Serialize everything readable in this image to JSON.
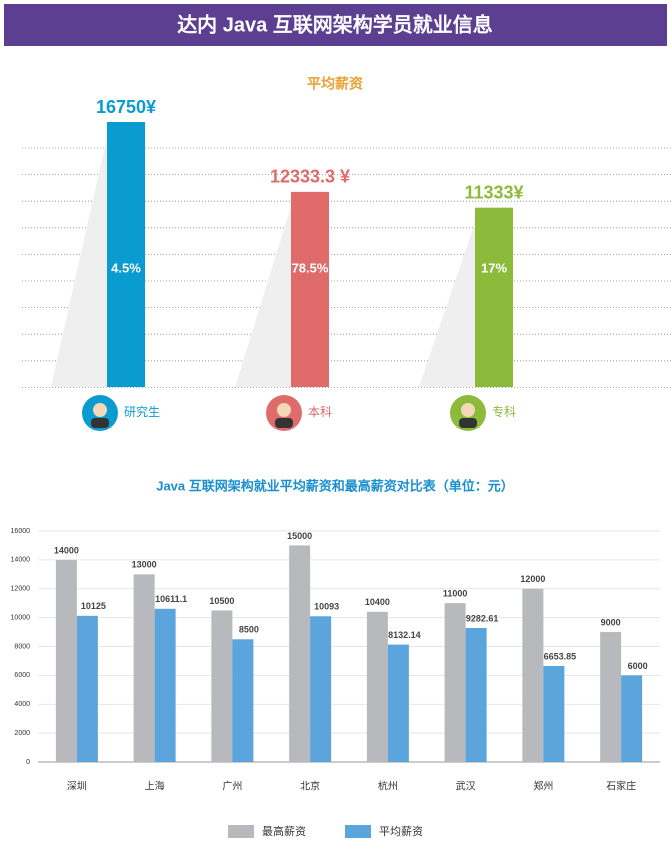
{
  "header": {
    "title": "达内 Java 互联网架构学员就业信息"
  },
  "chart_data": [
    {
      "type": "bar",
      "title": "平均薪资",
      "categories": [
        "研究生",
        "本科",
        "专科"
      ],
      "values": [
        16750,
        12333.3,
        11333
      ],
      "value_labels": [
        "16750¥",
        "12333.3 ¥",
        "11333¥"
      ],
      "colors": [
        "#0a9bd0",
        "#e06b6b",
        "#8cbb3c"
      ],
      "shares": {
        "values": [
          4.5,
          78.5,
          17
        ],
        "value_labels": [
          "4.5%",
          "78.5%",
          "17%"
        ]
      }
    },
    {
      "type": "grouped-bar",
      "title": "Java 互联网架构就业平均薪资和最高薪资对比表（单位：元）",
      "categories": [
        "深圳",
        "上海",
        "广州",
        "北京",
        "杭州",
        "武汉",
        "郑州",
        "石家庄"
      ],
      "series": [
        {
          "name": "最高薪资",
          "color": "#b8b9bc",
          "values": [
            14000,
            13000,
            10500,
            15000,
            10400,
            11000,
            12000,
            9000
          ]
        },
        {
          "name": "平均薪资",
          "color": "#5ba5dc",
          "values": [
            10125,
            10611.1,
            8500,
            10093,
            8132.14,
            9282.61,
            6653.85,
            6000
          ]
        }
      ],
      "ylim": [
        0,
        16000
      ],
      "yticks": [
        0,
        2000,
        4000,
        6000,
        8000,
        10000,
        12000,
        14000,
        16000
      ],
      "grid": true,
      "legend": "bottom"
    }
  ]
}
